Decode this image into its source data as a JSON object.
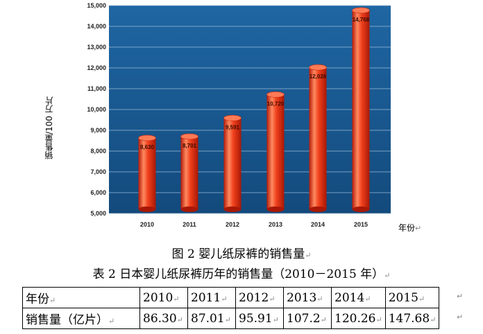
{
  "chart_data": {
    "type": "bar",
    "categories": [
      "2010",
      "2011",
      "2012",
      "2013",
      "2014",
      "2015"
    ],
    "values": [
      8630,
      8701,
      9591,
      10720,
      12026,
      14768
    ],
    "value_labels": [
      "8,630",
      "8,701",
      "9,591",
      "10,720",
      "12,026",
      "14,768"
    ],
    "ylabel": "销售量/100 万片",
    "xlabel": "年份",
    "ylim": [
      5000,
      15000
    ],
    "yticks": [
      5000,
      6000,
      7000,
      8000,
      9000,
      10000,
      11000,
      12000,
      13000,
      14000,
      15000
    ],
    "ytick_labels": [
      "5,000",
      "6,000",
      "7,000",
      "8,000",
      "9,000",
      "10,000",
      "11,000",
      "12,000",
      "13,000",
      "14,000",
      "15,000"
    ],
    "grid": true,
    "colors": {
      "background": "#1a5c96",
      "bar": "#e8361c",
      "bar_highlight": "#ff9a70",
      "grid": "#9bbcd9"
    }
  },
  "figure_caption": "图 2  婴儿纸尿裤的销售量",
  "table_caption": "表 2  日本婴儿纸尿裤历年的销售量（2010－2015 年）",
  "table": {
    "rows": [
      [
        "年份",
        "2010",
        "2011",
        "2012",
        "2013",
        "2014",
        "2015"
      ],
      [
        "销售量（亿片）",
        "86.30",
        "87.01",
        "95.91",
        "107.2",
        "120.26",
        "147.68"
      ]
    ]
  },
  "marks": {
    "return": "↵"
  }
}
